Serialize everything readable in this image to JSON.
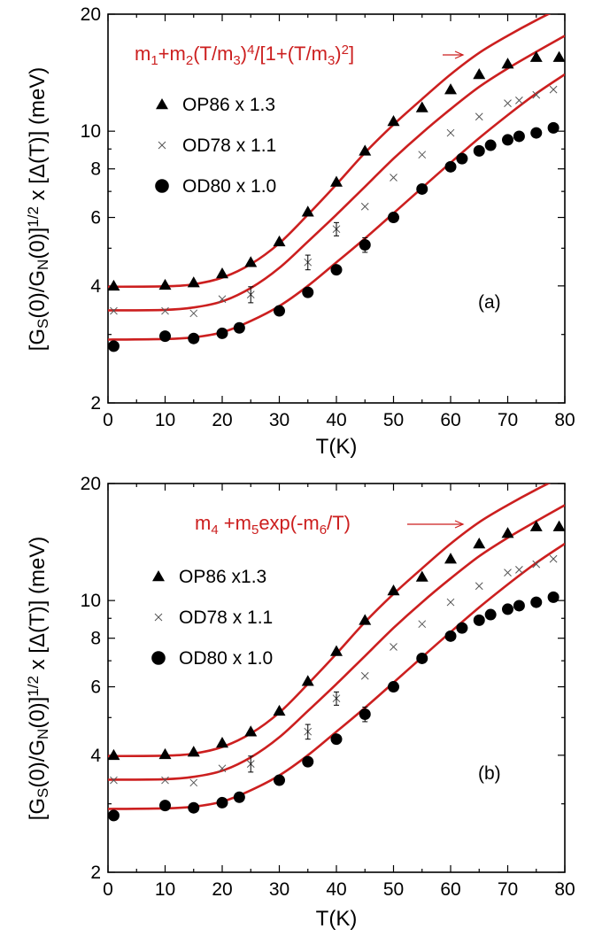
{
  "colors": {
    "fit_line": "#cc1f1f",
    "points": "#000000",
    "annotation": "#cc1f1f"
  },
  "shared": {
    "xlabel": "T(K)",
    "ylabel_main": "[G",
    "ylabel_parts": [
      "[G",
      "S",
      "(0)/G",
      "N",
      "(0)]",
      "1/2",
      " x [Δ(T)] (meV)"
    ],
    "x_ticks": [
      "0",
      "10",
      "20",
      "30",
      "40",
      "50",
      "60",
      "70",
      "80"
    ],
    "y_ticks": [
      "2",
      "4",
      "6",
      "8",
      "10",
      "20"
    ]
  },
  "chart_data": [
    {
      "type": "scatter",
      "panel_label": "(a)",
      "annotation_parts": [
        "m",
        "1",
        "+m",
        "2",
        "(T/m",
        "3",
        ")",
        "4",
        "/[1+(T/m",
        "3",
        ")",
        "2",
        "]"
      ],
      "xlim": [
        0,
        80
      ],
      "ylim": [
        2,
        20
      ],
      "yscale": "log",
      "legend_position": "upper-left",
      "series": [
        {
          "name": "OP86 x 1.3",
          "marker": "triangle",
          "x": [
            1,
            10,
            15,
            20,
            25,
            30,
            35,
            40,
            45,
            50,
            55,
            60,
            65,
            70,
            75,
            79
          ],
          "y": [
            4.0,
            4.02,
            4.08,
            4.3,
            4.6,
            5.2,
            6.2,
            7.4,
            8.9,
            10.6,
            11.5,
            12.8,
            14.0,
            14.9,
            15.5,
            15.5
          ]
        },
        {
          "name": "OD78 x 1.1",
          "marker": "cross",
          "x": [
            1,
            10,
            15,
            20,
            25,
            35,
            40,
            45,
            50,
            55,
            60,
            65,
            70,
            72,
            75,
            78
          ],
          "y": [
            3.45,
            3.45,
            3.4,
            3.7,
            3.8,
            4.6,
            5.6,
            6.4,
            7.6,
            8.7,
            9.9,
            10.9,
            11.8,
            12.0,
            12.4,
            12.8
          ]
        },
        {
          "name": "OD80 x 1.0",
          "marker": "circle",
          "x": [
            1,
            10,
            15,
            20,
            23,
            30,
            35,
            40,
            45,
            50,
            55,
            60,
            62,
            65,
            67,
            70,
            72,
            75,
            78
          ],
          "y": [
            2.8,
            2.97,
            2.93,
            3.02,
            3.12,
            3.45,
            3.85,
            4.4,
            5.1,
            6.0,
            7.1,
            8.1,
            8.5,
            8.9,
            9.2,
            9.5,
            9.7,
            9.9,
            10.2
          ]
        }
      ],
      "fits": [
        {
          "x": [
            0,
            10,
            15,
            20,
            25,
            30,
            35,
            40,
            45,
            50,
            55,
            60,
            65,
            70,
            75,
            80
          ],
          "y": [
            3.98,
            3.99,
            4.04,
            4.2,
            4.55,
            5.15,
            6.1,
            7.3,
            8.8,
            10.4,
            12.1,
            14.0,
            15.9,
            17.6,
            19.3,
            21.0
          ]
        },
        {
          "x": [
            0,
            10,
            15,
            20,
            25,
            30,
            35,
            40,
            45,
            50,
            55,
            60,
            65,
            70,
            75,
            80
          ],
          "y": [
            3.46,
            3.47,
            3.52,
            3.65,
            3.95,
            4.45,
            5.2,
            6.1,
            7.2,
            8.5,
            9.9,
            11.4,
            13.0,
            14.5,
            16.0,
            17.6
          ]
        },
        {
          "x": [
            0,
            10,
            15,
            20,
            25,
            30,
            35,
            40,
            45,
            50,
            55,
            60,
            65,
            70,
            75,
            80
          ],
          "y": [
            2.91,
            2.92,
            2.95,
            3.04,
            3.25,
            3.55,
            4.0,
            4.6,
            5.3,
            6.15,
            7.15,
            8.3,
            9.6,
            11.0,
            12.5,
            14.0
          ]
        }
      ]
    },
    {
      "type": "scatter",
      "panel_label": "(b)",
      "annotation_parts": [
        "m",
        "4",
        " +m",
        "5",
        "exp(-m",
        "6",
        "/T)"
      ],
      "xlim": [
        0,
        80
      ],
      "ylim": [
        2,
        20
      ],
      "yscale": "log",
      "legend_position": "upper-left",
      "series": [
        {
          "name": "OP86 x1.3",
          "marker": "triangle",
          "x": [
            1,
            10,
            15,
            20,
            25,
            30,
            35,
            40,
            45,
            50,
            55,
            60,
            65,
            70,
            75,
            79
          ],
          "y": [
            4.0,
            4.02,
            4.08,
            4.3,
            4.6,
            5.2,
            6.2,
            7.4,
            8.9,
            10.6,
            11.5,
            12.8,
            14.0,
            14.9,
            15.5,
            15.5
          ]
        },
        {
          "name": "OD78 x 1.1",
          "marker": "cross",
          "x": [
            1,
            10,
            15,
            20,
            25,
            35,
            40,
            45,
            50,
            55,
            60,
            65,
            70,
            72,
            75,
            78
          ],
          "y": [
            3.45,
            3.45,
            3.4,
            3.7,
            3.8,
            4.6,
            5.6,
            6.4,
            7.6,
            8.7,
            9.9,
            10.9,
            11.8,
            12.0,
            12.4,
            12.8
          ]
        },
        {
          "name": "OD80 x 1.0",
          "marker": "circle",
          "x": [
            1,
            10,
            15,
            20,
            23,
            30,
            35,
            40,
            45,
            50,
            55,
            60,
            62,
            65,
            67,
            70,
            72,
            75,
            78
          ],
          "y": [
            2.8,
            2.97,
            2.93,
            3.02,
            3.12,
            3.45,
            3.85,
            4.4,
            5.1,
            6.0,
            7.1,
            8.1,
            8.5,
            8.9,
            9.2,
            9.5,
            9.7,
            9.9,
            10.2
          ]
        }
      ],
      "fits": [
        {
          "x": [
            0,
            10,
            15,
            20,
            25,
            30,
            35,
            40,
            45,
            50,
            55,
            60,
            65,
            70,
            75,
            80
          ],
          "y": [
            3.98,
            3.99,
            4.04,
            4.2,
            4.55,
            5.15,
            6.1,
            7.3,
            8.8,
            10.4,
            12.1,
            14.0,
            15.9,
            17.6,
            19.3,
            21.0
          ]
        },
        {
          "x": [
            0,
            10,
            15,
            20,
            25,
            30,
            35,
            40,
            45,
            50,
            55,
            60,
            65,
            70,
            75,
            80
          ],
          "y": [
            3.46,
            3.47,
            3.52,
            3.65,
            3.95,
            4.45,
            5.2,
            6.1,
            7.2,
            8.5,
            9.9,
            11.4,
            13.0,
            14.5,
            16.0,
            17.6
          ]
        },
        {
          "x": [
            0,
            10,
            15,
            20,
            25,
            30,
            35,
            40,
            45,
            50,
            55,
            60,
            65,
            70,
            75,
            80
          ],
          "y": [
            2.91,
            2.92,
            2.95,
            3.04,
            3.25,
            3.55,
            4.0,
            4.6,
            5.3,
            6.15,
            7.15,
            8.3,
            9.6,
            11.0,
            12.5,
            14.0
          ]
        }
      ]
    }
  ]
}
